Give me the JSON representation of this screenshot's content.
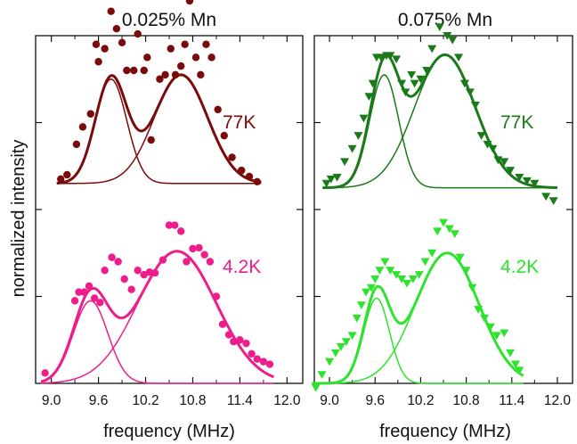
{
  "ylabel": "normalized intensity",
  "chart_data": [
    {
      "type": "scatter",
      "title": "0.025% Mn",
      "xlabel": "frequency (MHz)",
      "ylabel": "normalized intensity",
      "xlim": [
        8.8,
        12.2
      ],
      "ylim": [
        0,
        4
      ],
      "xticks": [
        9.0,
        9.6,
        10.2,
        10.8,
        11.4,
        12.0
      ],
      "xtick_labels": [
        "9.0",
        "9.6",
        "10.2",
        "10.8",
        "11.4",
        "12.0"
      ],
      "y_tick_labels_shown": false,
      "series": [
        {
          "name": "77K",
          "color": "#7b0a0a",
          "marker": "circle",
          "offset": 2.3,
          "points": [
            [
              9.12,
              0.05
            ],
            [
              9.2,
              0.1
            ],
            [
              9.32,
              0.45
            ],
            [
              9.4,
              0.65
            ],
            [
              9.5,
              0.8
            ],
            [
              9.57,
              1.6
            ],
            [
              9.6,
              1.4
            ],
            [
              9.68,
              1.55
            ],
            [
              9.76,
              1.98
            ],
            [
              9.83,
              1.78
            ],
            [
              9.9,
              1.62
            ],
            [
              9.96,
              1.3
            ],
            [
              10.05,
              1.3
            ],
            [
              10.1,
              1.72
            ],
            [
              10.18,
              1.3
            ],
            [
              10.22,
              1.45
            ],
            [
              10.27,
              0.5
            ],
            [
              10.38,
              1.2
            ],
            [
              10.45,
              1.25
            ],
            [
              10.52,
              1.55
            ],
            [
              10.58,
              1.25
            ],
            [
              10.65,
              1.35
            ],
            [
              10.7,
              1.6
            ],
            [
              10.76,
              2.1
            ],
            [
              10.84,
              1.45
            ],
            [
              10.9,
              1.25
            ],
            [
              10.97,
              1.6
            ],
            [
              11.04,
              1.45
            ],
            [
              11.12,
              0.85
            ],
            [
              11.2,
              0.55
            ],
            [
              11.3,
              0.3
            ],
            [
              11.42,
              0.15
            ],
            [
              11.52,
              0.08
            ],
            [
              11.62,
              0.02
            ]
          ],
          "fit_components": [
            {
              "center": 9.76,
              "amplitude": 1.2,
              "sigma": 0.2
            },
            {
              "center": 10.65,
              "amplitude": 1.25,
              "sigma": 0.34
            }
          ]
        },
        {
          "name": "4.2K",
          "color": "#ee1d8b",
          "marker": "circle",
          "offset": 0,
          "points": [
            [
              8.92,
              0.12
            ],
            [
              9.3,
              0.95
            ],
            [
              9.35,
              1.05
            ],
            [
              9.42,
              1.05
            ],
            [
              9.48,
              1.12
            ],
            [
              9.55,
              0.98
            ],
            [
              9.62,
              0.93
            ],
            [
              9.68,
              1.3
            ],
            [
              9.77,
              1.45
            ],
            [
              9.85,
              1.4
            ],
            [
              9.93,
              1.2
            ],
            [
              10.02,
              1.08
            ],
            [
              10.1,
              1.3
            ],
            [
              10.18,
              1.25
            ],
            [
              10.25,
              1.28
            ],
            [
              10.32,
              1.27
            ],
            [
              10.42,
              1.42
            ],
            [
              10.5,
              1.82
            ],
            [
              10.57,
              1.82
            ],
            [
              10.65,
              1.75
            ],
            [
              10.72,
              1.4
            ],
            [
              10.8,
              1.55
            ],
            [
              10.88,
              1.56
            ],
            [
              10.95,
              1.48
            ],
            [
              11.02,
              1.4
            ],
            [
              11.1,
              1.0
            ],
            [
              11.18,
              0.68
            ],
            [
              11.26,
              0.56
            ],
            [
              11.32,
              0.48
            ],
            [
              11.4,
              0.5
            ],
            [
              11.48,
              0.46
            ],
            [
              11.55,
              0.34
            ],
            [
              11.62,
              0.28
            ],
            [
              11.7,
              0.25
            ],
            [
              11.78,
              0.22
            ]
          ],
          "fit_components": [
            {
              "center": 9.5,
              "amplitude": 0.95,
              "sigma": 0.22
            },
            {
              "center": 10.6,
              "amplitude": 1.52,
              "sigma": 0.5
            }
          ]
        }
      ]
    },
    {
      "type": "scatter",
      "title": "0.075% Mn",
      "xlabel": "frequency (MHz)",
      "ylabel": "",
      "xlim": [
        8.8,
        12.2
      ],
      "ylim": [
        0,
        4
      ],
      "xticks": [
        9.0,
        9.6,
        10.2,
        10.8,
        11.4,
        12.0
      ],
      "xtick_labels": [
        "9.0",
        "9.6",
        "10.2",
        "10.8",
        "11.4",
        "12.0"
      ],
      "y_tick_labels_shown": false,
      "series": [
        {
          "name": "77K",
          "color": "#1a7a1a",
          "marker": "triangle-down",
          "offset": 2.25,
          "points": [
            [
              8.96,
              0.05
            ],
            [
              9.02,
              0.1
            ],
            [
              9.1,
              0.12
            ],
            [
              9.2,
              0.3
            ],
            [
              9.3,
              0.45
            ],
            [
              9.38,
              0.6
            ],
            [
              9.45,
              0.8
            ],
            [
              9.52,
              1.05
            ],
            [
              9.57,
              1.2
            ],
            [
              9.62,
              1.5
            ],
            [
              9.68,
              1.5
            ],
            [
              9.75,
              1.52
            ],
            [
              9.8,
              1.52
            ],
            [
              9.88,
              1.48
            ],
            [
              9.95,
              1.2
            ],
            [
              10.0,
              1.1
            ],
            [
              10.08,
              1.3
            ],
            [
              10.12,
              1.2
            ],
            [
              10.2,
              1.25
            ],
            [
              10.28,
              1.35
            ],
            [
              10.35,
              1.6
            ],
            [
              10.45,
              1.85
            ],
            [
              10.55,
              1.75
            ],
            [
              10.62,
              1.7
            ],
            [
              10.7,
              1.5
            ],
            [
              10.78,
              1.2
            ],
            [
              10.85,
              1.1
            ],
            [
              10.92,
              0.95
            ],
            [
              11.0,
              0.6
            ],
            [
              11.08,
              0.5
            ],
            [
              11.15,
              0.45
            ],
            [
              11.22,
              0.32
            ],
            [
              11.3,
              0.3
            ],
            [
              11.38,
              0.2
            ],
            [
              11.5,
              0.12
            ],
            [
              11.6,
              0.08
            ],
            [
              11.7,
              0.05
            ],
            [
              11.85,
              -0.1
            ],
            [
              11.95,
              -0.15
            ]
          ],
          "fit_components": [
            {
              "center": 9.72,
              "amplitude": 1.3,
              "sigma": 0.19
            },
            {
              "center": 10.52,
              "amplitude": 1.53,
              "sigma": 0.4
            }
          ]
        },
        {
          "name": "4.2K",
          "color": "#2ee32e",
          "marker": "triangle-down",
          "offset": 0,
          "points": [
            [
              8.82,
              -0.05
            ],
            [
              8.9,
              0.1
            ],
            [
              9.0,
              0.25
            ],
            [
              9.08,
              0.35
            ],
            [
              9.15,
              0.42
            ],
            [
              9.22,
              0.48
            ],
            [
              9.3,
              0.55
            ],
            [
              9.36,
              0.75
            ],
            [
              9.42,
              0.9
            ],
            [
              9.48,
              1.05
            ],
            [
              9.55,
              1.1
            ],
            [
              9.6,
              1.2
            ],
            [
              9.66,
              1.3
            ],
            [
              9.73,
              1.4
            ],
            [
              9.8,
              1.3
            ],
            [
              9.88,
              1.25
            ],
            [
              9.95,
              1.2
            ],
            [
              10.02,
              1.15
            ],
            [
              10.1,
              1.2
            ],
            [
              10.18,
              1.25
            ],
            [
              10.26,
              1.4
            ],
            [
              10.35,
              1.5
            ],
            [
              10.42,
              1.75
            ],
            [
              10.5,
              1.85
            ],
            [
              10.58,
              1.78
            ],
            [
              10.65,
              1.72
            ],
            [
              10.72,
              1.45
            ],
            [
              10.8,
              1.3
            ],
            [
              10.88,
              1.1
            ],
            [
              10.96,
              0.85
            ],
            [
              11.04,
              0.75
            ],
            [
              11.12,
              0.65
            ],
            [
              11.2,
              0.55
            ],
            [
              11.3,
              0.58
            ],
            [
              11.38,
              0.35
            ],
            [
              11.45,
              0.22
            ],
            [
              11.5,
              0.15
            ]
          ],
          "fit_components": [
            {
              "center": 9.62,
              "amplitude": 0.98,
              "sigma": 0.17
            },
            {
              "center": 10.55,
              "amplitude": 1.5,
              "sigma": 0.42
            }
          ]
        }
      ]
    }
  ]
}
